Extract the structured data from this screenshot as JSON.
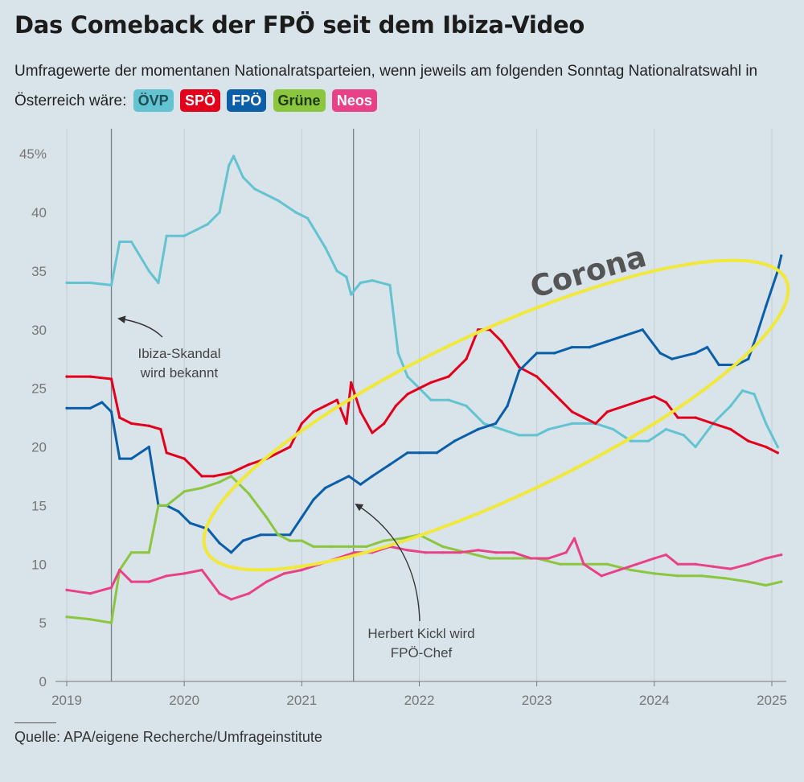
{
  "title": "Das Comeback der FPÖ seit dem Ibiza-Video",
  "subtitle_text": "Umfragewerte der momentanen Nationalratsparteien, wenn jeweils am folgenden Sonntag Nationalratswahl in Österreich wäre:",
  "legend": [
    {
      "label": "ÖVP",
      "color": "#63c3d1"
    },
    {
      "label": "SPÖ",
      "color": "#e3001b"
    },
    {
      "label": "FPÖ",
      "color": "#0b5ea8"
    },
    {
      "label": "Grüne",
      "color": "#8cc63f"
    },
    {
      "label": "Neos",
      "color": "#e84188"
    }
  ],
  "source": "Quelle: APA/eigene Recherche/Umfrageinstitute",
  "chart_data": {
    "type": "line",
    "x_tick_labels": [
      "2019",
      "2020",
      "2021",
      "2022",
      "2023",
      "2024",
      "2025"
    ],
    "y_tick_labels": [
      "0",
      "5",
      "10",
      "15",
      "20",
      "25",
      "30",
      "35",
      "40",
      "45%"
    ],
    "ylim": [
      0,
      47
    ],
    "xlim": [
      2019.0,
      2025.2
    ],
    "grid": "vertical lines at years",
    "events": [
      {
        "x": 2019.38,
        "label_lines": [
          "Ibiza-Skandal",
          "wird bekannt"
        ]
      },
      {
        "x": 2021.44,
        "label_lines": [
          "Herbert Kickl wird",
          "FPÖ-Chef"
        ]
      }
    ],
    "annotation": "Corona",
    "series": [
      {
        "name": "ÖVP",
        "color": "#63c3d1",
        "x": [
          2019.0,
          2019.2,
          2019.38,
          2019.45,
          2019.55,
          2019.7,
          2019.78,
          2019.85,
          2020.0,
          2020.2,
          2020.3,
          2020.38,
          2020.42,
          2020.5,
          2020.6,
          2020.8,
          2020.95,
          2021.05,
          2021.2,
          2021.3,
          2021.38,
          2021.42,
          2021.5,
          2021.6,
          2021.75,
          2021.82,
          2021.9,
          2022.0,
          2022.1,
          2022.25,
          2022.4,
          2022.55,
          2022.7,
          2022.85,
          2023.0,
          2023.1,
          2023.3,
          2023.5,
          2023.65,
          2023.8,
          2023.95,
          2024.1,
          2024.25,
          2024.35,
          2024.5,
          2024.65,
          2024.75,
          2024.85,
          2024.95,
          2025.05
        ],
        "y": [
          34,
          34,
          33.8,
          37.5,
          37.5,
          35,
          34,
          38,
          38,
          39,
          40,
          44,
          44.8,
          43,
          42,
          41,
          40,
          39.5,
          37,
          35,
          34.5,
          33,
          34,
          34.2,
          33.8,
          28,
          26,
          25,
          24,
          24,
          23.5,
          22,
          21.5,
          21,
          21,
          21.5,
          22,
          22,
          21.5,
          20.5,
          20.5,
          21.5,
          21,
          20,
          22,
          23.5,
          24.8,
          24.5,
          22,
          20
        ]
      },
      {
        "name": "SPÖ",
        "color": "#e3001b",
        "x": [
          2019.0,
          2019.2,
          2019.38,
          2019.45,
          2019.55,
          2019.7,
          2019.8,
          2019.85,
          2020.0,
          2020.15,
          2020.25,
          2020.4,
          2020.55,
          2020.7,
          2020.9,
          2021.0,
          2021.1,
          2021.2,
          2021.3,
          2021.38,
          2021.42,
          2021.5,
          2021.6,
          2021.7,
          2021.8,
          2021.9,
          2022.0,
          2022.1,
          2022.25,
          2022.4,
          2022.5,
          2022.6,
          2022.7,
          2022.85,
          2023.0,
          2023.1,
          2023.2,
          2023.3,
          2023.4,
          2023.5,
          2023.6,
          2023.75,
          2023.9,
          2024.0,
          2024.1,
          2024.2,
          2024.35,
          2024.5,
          2024.65,
          2024.8,
          2024.95,
          2025.05
        ],
        "y": [
          26,
          26,
          25.8,
          22.5,
          22,
          21.8,
          21.5,
          19.5,
          19,
          17.5,
          17.5,
          17.8,
          18.5,
          19,
          20,
          22,
          23,
          23.5,
          24,
          22,
          25.5,
          23,
          21.2,
          22,
          23.5,
          24.5,
          25,
          25.5,
          26,
          27.5,
          30,
          30,
          29,
          26.8,
          26,
          25,
          24,
          23,
          22.5,
          22,
          23,
          23.5,
          24,
          24.3,
          23.8,
          22.5,
          22.5,
          22,
          21.5,
          20.5,
          20,
          19.5
        ]
      },
      {
        "name": "FPÖ",
        "color": "#0b5ea8",
        "x": [
          2019.0,
          2019.2,
          2019.3,
          2019.38,
          2019.45,
          2019.55,
          2019.7,
          2019.78,
          2019.85,
          2019.95,
          2020.05,
          2020.2,
          2020.3,
          2020.4,
          2020.5,
          2020.65,
          2020.8,
          2020.9,
          2021.0,
          2021.1,
          2021.2,
          2021.3,
          2021.4,
          2021.5,
          2021.6,
          2021.75,
          2021.9,
          2022.0,
          2022.15,
          2022.3,
          2022.5,
          2022.65,
          2022.75,
          2022.85,
          2023.0,
          2023.15,
          2023.3,
          2023.45,
          2023.6,
          2023.75,
          2023.9,
          2024.05,
          2024.15,
          2024.35,
          2024.45,
          2024.55,
          2024.7,
          2024.8,
          2024.87,
          2024.95,
          2025.05,
          2025.08
        ],
        "y": [
          23.3,
          23.3,
          23.8,
          23,
          19,
          19,
          20,
          15,
          15,
          14.5,
          13.5,
          13,
          11.8,
          11,
          12,
          12.5,
          12.5,
          12.5,
          14,
          15.5,
          16.5,
          17,
          17.5,
          16.8,
          17.5,
          18.5,
          19.5,
          19.5,
          19.5,
          20.5,
          21.5,
          22,
          23.5,
          26.5,
          28,
          28,
          28.5,
          28.5,
          29,
          29.5,
          30,
          28,
          27.5,
          28,
          28.5,
          27,
          27,
          27.5,
          29.5,
          32,
          35,
          36.3
        ]
      },
      {
        "name": "Grüne",
        "color": "#8cc63f",
        "x": [
          2019.0,
          2019.2,
          2019.38,
          2019.45,
          2019.55,
          2019.7,
          2019.78,
          2019.85,
          2020.0,
          2020.15,
          2020.3,
          2020.4,
          2020.55,
          2020.7,
          2020.8,
          2020.9,
          2021.0,
          2021.1,
          2021.25,
          2021.4,
          2021.55,
          2021.7,
          2021.85,
          2022.0,
          2022.2,
          2022.4,
          2022.6,
          2022.8,
          2023.0,
          2023.2,
          2023.4,
          2023.6,
          2023.8,
          2024.0,
          2024.2,
          2024.4,
          2024.6,
          2024.8,
          2024.95,
          2025.08
        ],
        "y": [
          5.5,
          5.3,
          5.0,
          9.5,
          11,
          11,
          15,
          15,
          16.2,
          16.5,
          17,
          17.5,
          16,
          14,
          12.5,
          12,
          12,
          11.5,
          11.5,
          11.5,
          11.5,
          12,
          12.2,
          12.5,
          11.5,
          11,
          10.5,
          10.5,
          10.5,
          10,
          10,
          10,
          9.5,
          9.2,
          9,
          9,
          8.8,
          8.5,
          8.2,
          8.5
        ]
      },
      {
        "name": "Neos",
        "color": "#e84188",
        "x": [
          2019.0,
          2019.2,
          2019.38,
          2019.45,
          2019.55,
          2019.7,
          2019.85,
          2020.0,
          2020.15,
          2020.3,
          2020.4,
          2020.55,
          2020.7,
          2020.85,
          2021.0,
          2021.15,
          2021.3,
          2021.45,
          2021.6,
          2021.75,
          2021.9,
          2022.05,
          2022.2,
          2022.35,
          2022.5,
          2022.65,
          2022.8,
          2022.95,
          2023.1,
          2023.25,
          2023.32,
          2023.4,
          2023.55,
          2023.7,
          2023.85,
          2024.0,
          2024.1,
          2024.2,
          2024.35,
          2024.5,
          2024.65,
          2024.8,
          2024.95,
          2025.08
        ],
        "y": [
          7.8,
          7.5,
          8.0,
          9.5,
          8.5,
          8.5,
          9.0,
          9.2,
          9.5,
          7.5,
          7.0,
          7.5,
          8.5,
          9.2,
          9.5,
          10.0,
          10.5,
          11.0,
          11.0,
          11.5,
          11.2,
          11.0,
          11.0,
          11.0,
          11.2,
          11.0,
          11.0,
          10.5,
          10.5,
          11.0,
          12.2,
          10.0,
          9.0,
          9.5,
          10.0,
          10.5,
          10.8,
          10.0,
          10.0,
          9.8,
          9.6,
          10.0,
          10.5,
          10.8
        ]
      }
    ]
  }
}
